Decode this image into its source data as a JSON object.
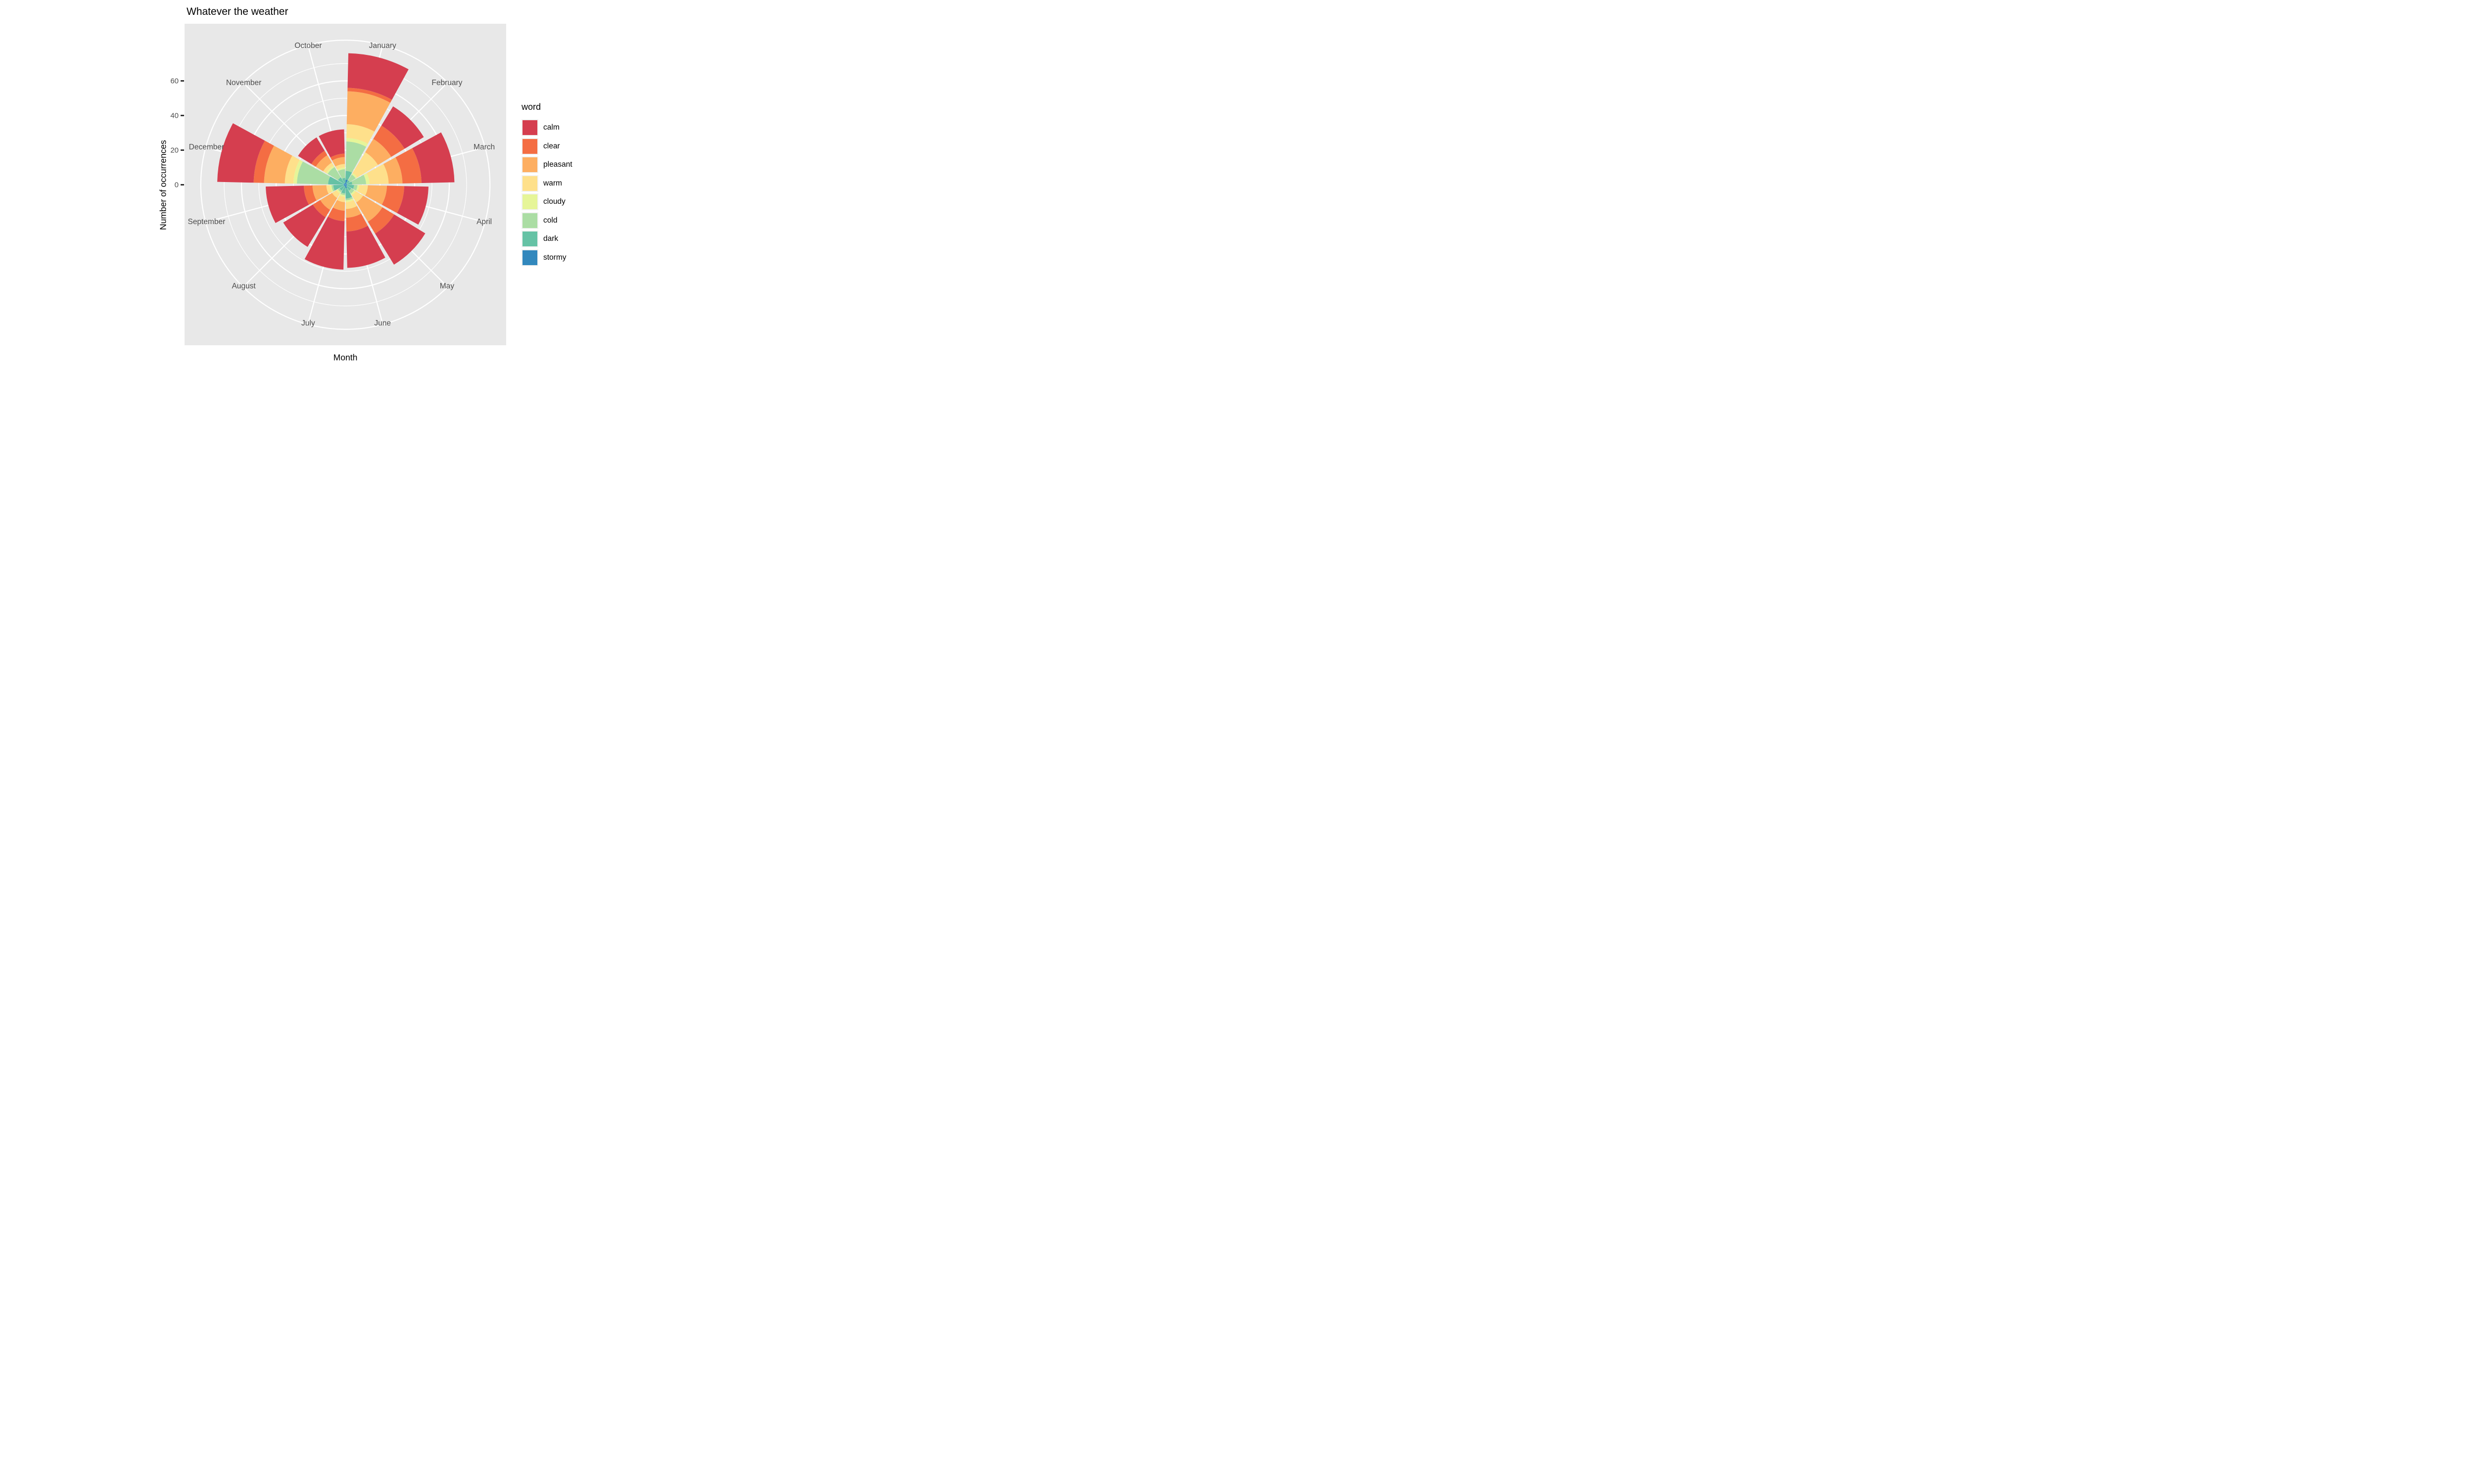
{
  "title": "Whatever the weather",
  "axes": {
    "x_title": "Month",
    "y_title": "Number of occurrences",
    "y_ticks": [
      0,
      20,
      40,
      60
    ]
  },
  "legend": {
    "title": "word",
    "items": [
      {
        "label": "calm",
        "color": "#D53E4F"
      },
      {
        "label": "clear",
        "color": "#F46D43"
      },
      {
        "label": "pleasant",
        "color": "#FDAE61"
      },
      {
        "label": "warm",
        "color": "#FEE08B"
      },
      {
        "label": "cloudy",
        "color": "#E6F598"
      },
      {
        "label": "cold",
        "color": "#ABDDA4"
      },
      {
        "label": "dark",
        "color": "#66C2A5"
      },
      {
        "label": "stormy",
        "color": "#3288BD"
      }
    ]
  },
  "chart_data": {
    "type": "bar",
    "coord": "polar",
    "title": "Whatever the weather",
    "xlabel": "Month",
    "ylabel": "Number of occurrences",
    "ylim": [
      0,
      84
    ],
    "grid": true,
    "legend_position": "right",
    "note": "Stacked rose chart; sectors 30deg clockwise from north; stack order inner-to-outer is stormy,dark,cold,cloudy,warm,pleasant,clear,calm",
    "categories": [
      "January",
      "February",
      "March",
      "April",
      "May",
      "June",
      "July",
      "August",
      "September",
      "December",
      "November",
      "October"
    ],
    "category_center_angles_deg": [
      15,
      45,
      75,
      105,
      135,
      165,
      195,
      225,
      255,
      285,
      315,
      345
    ],
    "series": [
      {
        "name": "calm",
        "color": "#D53E4F",
        "values": [
          20,
          13,
          19,
          14,
          21,
          21,
          28,
          20,
          22,
          21,
          9,
          14
        ]
      },
      {
        "name": "clear",
        "color": "#F46D43",
        "values": [
          2,
          9,
          11,
          10,
          8,
          8,
          6,
          5,
          5,
          6,
          3,
          2
        ]
      },
      {
        "name": "pleasant",
        "color": "#FDAE61",
        "values": [
          19,
          9,
          8,
          11,
          13,
          5,
          5,
          8,
          8,
          12,
          5,
          4
        ]
      },
      {
        "name": "warm",
        "color": "#FEE08B",
        "values": [
          8,
          14,
          11,
          5,
          5,
          4,
          3,
          3,
          2,
          5,
          2,
          2
        ]
      },
      {
        "name": "cloudy",
        "color": "#E6F598",
        "values": [
          2,
          1,
          2,
          1,
          1,
          1,
          1,
          1,
          1,
          2,
          1,
          1
        ]
      },
      {
        "name": "cold",
        "color": "#ABDDA4",
        "values": [
          17,
          4,
          8,
          2,
          2,
          1,
          1,
          1,
          1,
          18,
          7,
          5
        ]
      },
      {
        "name": "dark",
        "color": "#66C2A5",
        "values": [
          5,
          2,
          3,
          4,
          3,
          6,
          4,
          3,
          6,
          9,
          4,
          3
        ]
      },
      {
        "name": "stormy",
        "color": "#3288BD",
        "values": [
          3,
          1,
          1,
          1,
          1,
          2,
          1,
          1,
          1,
          1,
          1,
          1
        ]
      }
    ],
    "grid_circles_minor": [
      10,
      30,
      50,
      70
    ],
    "grid_circles_major": [
      20,
      40,
      60
    ],
    "outer_circle": 83.5,
    "sector_gap_deg": 2.6,
    "month_label_radius_units": 83
  },
  "style": {
    "panel_bg": "#E8E8E8",
    "grid_color": "#FFFFFF",
    "axis_text_color": "#4D4D4D",
    "title_color": "#000000"
  }
}
